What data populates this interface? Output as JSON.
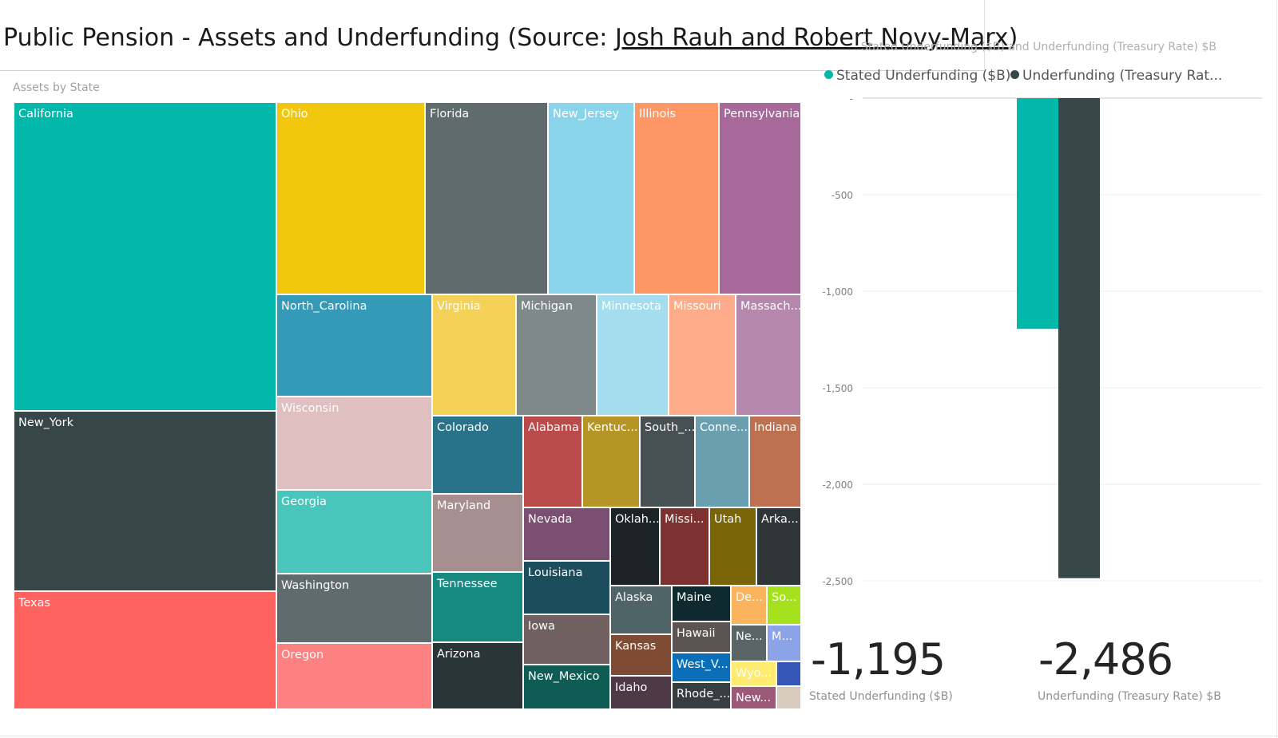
{
  "header": {
    "title_prefix": "Public Pension - Assets and Underfunding (Source: ",
    "title_link": "Josh Rauh and Robert Novy-Marx",
    "title_suffix": ")"
  },
  "treemap": {
    "title": "Assets by State",
    "tiles": [
      {
        "name": "California",
        "color": "#01B8AA"
      },
      {
        "name": "New_York",
        "color": "#374649"
      },
      {
        "name": "Texas",
        "color": "#FD625E"
      },
      {
        "name": "Ohio",
        "color": "#F2C80F"
      },
      {
        "name": "Florida",
        "color": "#5F6B6D"
      },
      {
        "name": "New_Jersey",
        "color": "#8AD4EB"
      },
      {
        "name": "Illinois",
        "color": "#FE9666"
      },
      {
        "name": "Pennsylvania",
        "color": "#A66999"
      },
      {
        "name": "North_Carolina",
        "color": "#3599B8"
      },
      {
        "name": "Wisconsin",
        "color": "#DFBFBF"
      },
      {
        "name": "Georgia",
        "color": "#4AC5BB"
      },
      {
        "name": "Washington",
        "color": "#5F6B6D"
      },
      {
        "name": "Oregon",
        "color": "#FB8281"
      },
      {
        "name": "Virginia",
        "color": "#F4D25A"
      },
      {
        "name": "Michigan",
        "color": "#7F898A"
      },
      {
        "name": "Minnesota",
        "color": "#A4DDEE"
      },
      {
        "name": "Missouri",
        "color": "#FDAB89"
      },
      {
        "name": "Massach...",
        "color": "#B687AC"
      },
      {
        "name": "Colorado",
        "color": "#28738A"
      },
      {
        "name": "Maryland",
        "color": "#A78F8F"
      },
      {
        "name": "Tennessee",
        "color": "#168980"
      },
      {
        "name": "Arizona",
        "color": "#293537"
      },
      {
        "name": "Alabama",
        "color": "#BB4A4A"
      },
      {
        "name": "Kentuc...",
        "color": "#B59525"
      },
      {
        "name": "South_...",
        "color": "#475052"
      },
      {
        "name": "Conne...",
        "color": "#6A9FB0"
      },
      {
        "name": "Indiana",
        "color": "#BD7150"
      },
      {
        "name": "Nevada",
        "color": "#7B4F71"
      },
      {
        "name": "Louisiana",
        "color": "#1B4D5C"
      },
      {
        "name": "Iowa",
        "color": "#706060"
      },
      {
        "name": "New_Mexico",
        "color": "#0F5C55"
      },
      {
        "name": "Oklah...",
        "color": "#1C2325"
      },
      {
        "name": "Missi...",
        "color": "#7D3231"
      },
      {
        "name": "Utah",
        "color": "#796408"
      },
      {
        "name": "Arka...",
        "color": "#303637"
      },
      {
        "name": "Alaska",
        "color": "#4F6466"
      },
      {
        "name": "Kansas",
        "color": "#7F4B33"
      },
      {
        "name": "Idaho",
        "color": "#4E3947"
      },
      {
        "name": "Maine",
        "color": "#0E2A2E"
      },
      {
        "name": "Hawaii",
        "color": "#5C5454"
      },
      {
        "name": "West_V...",
        "color": "#0A6FB8"
      },
      {
        "name": "Rhode_...",
        "color": "#363E40"
      },
      {
        "name": "De...",
        "color": "#F9B45D"
      },
      {
        "name": "So...",
        "color": "#A5E21D"
      },
      {
        "name": "Ne...",
        "color": "#5B6567"
      },
      {
        "name": "M...",
        "color": "#8DA3E7"
      },
      {
        "name": "Wyo...",
        "color": "#FFEB70"
      },
      {
        "name": "",
        "color": "#3457B7"
      },
      {
        "name": "New...",
        "color": "#9C5A78"
      },
      {
        "name": "",
        "color": "#D9CBBE"
      }
    ]
  },
  "chart_data": {
    "type": "bar",
    "title": "Stated Underfunding ($B) and Underfunding (Treasury Rate) $B",
    "categories": [
      ""
    ],
    "series": [
      {
        "name": "Stated Underfunding ($B)",
        "values": [
          -1195
        ],
        "color": "#01B8AA"
      },
      {
        "name": "Underfunding (Treasury Rate) $B",
        "values": [
          -2486
        ],
        "color": "#374649"
      }
    ],
    "legend_labels": [
      "Stated Underfunding ($B)",
      "Underfunding (Treasury Rat..."
    ],
    "ylim": [
      -2500,
      0
    ],
    "yticks": [
      0,
      -500,
      -1000,
      -1500,
      -2000,
      -2500
    ],
    "ytick_labels": [
      "-",
      "-500",
      "-1,000",
      "-1,500",
      "-2,000",
      "-2,500"
    ],
    "grid": true,
    "legend": "top-left"
  },
  "cards": [
    {
      "value": "-1,195",
      "label": "Stated Underfunding ($B)"
    },
    {
      "value": "-2,486",
      "label": "Underfunding (Treasury Rate) $B"
    }
  ]
}
